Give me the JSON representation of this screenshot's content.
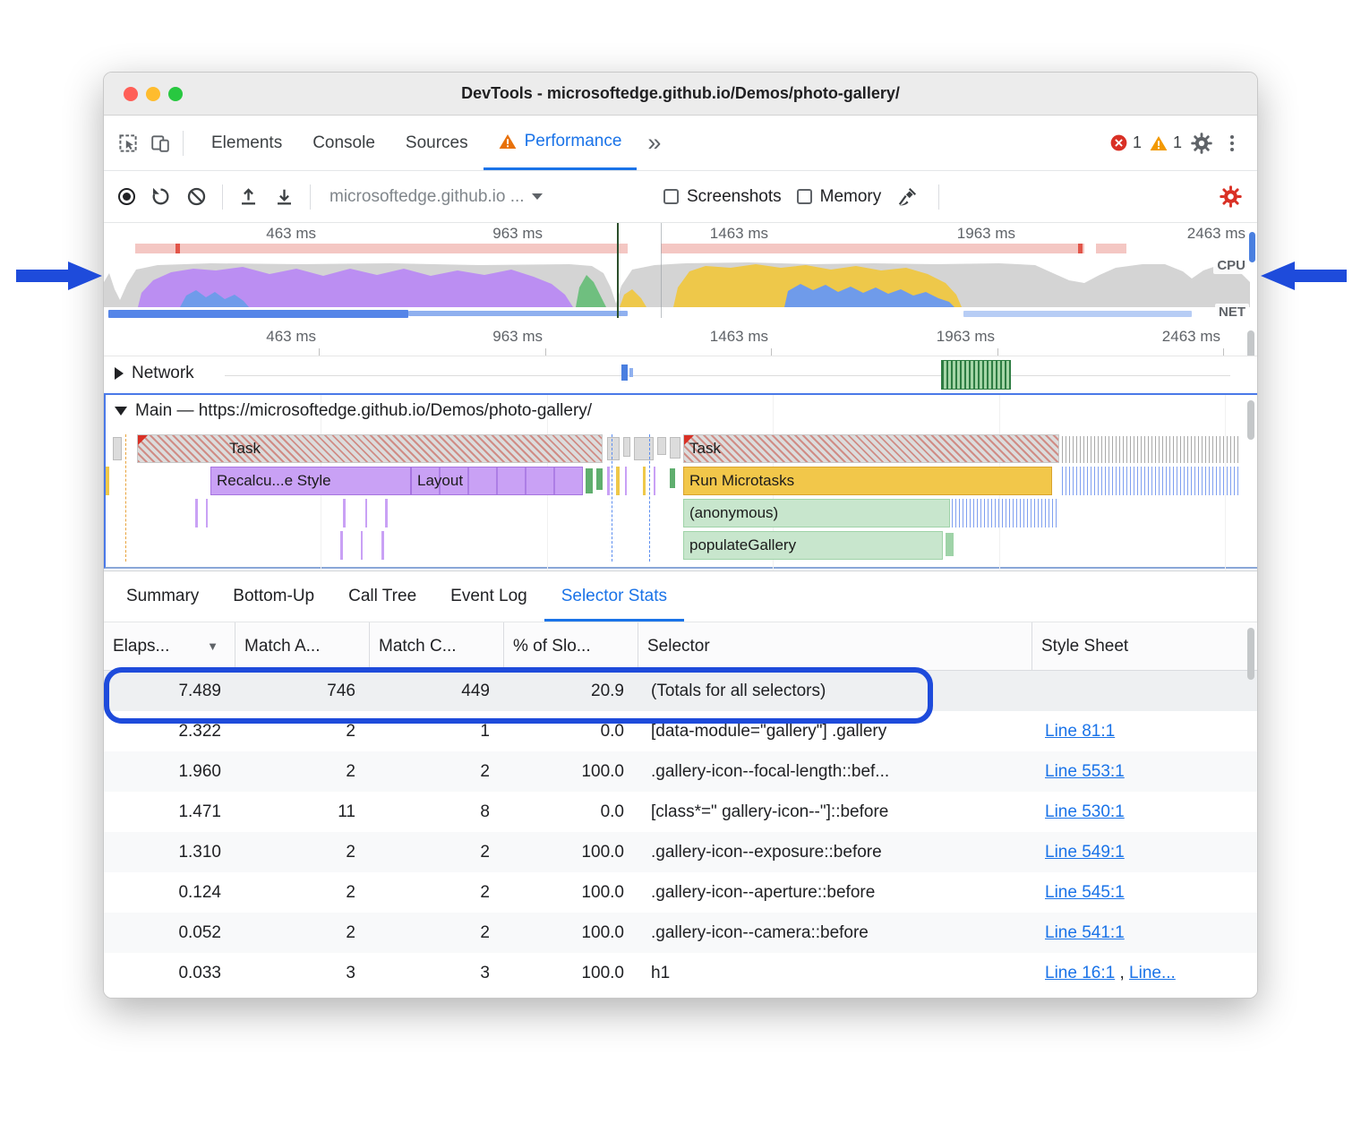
{
  "window_title": "DevTools - microsoftedge.github.io/Demos/photo-gallery/",
  "colors": {
    "accent_blue": "#1a73e8",
    "annotation_blue": "#1e4bdb",
    "error_red": "#d93025",
    "warning_orange": "#f29900",
    "performance_tab_warning": "#e8710a",
    "cpu_scripting_yellow": "#eec84a",
    "cpu_rendering_purple": "#bb8ef2",
    "cpu_painting_green": "#6fbf7f",
    "cpu_loading_blue": "#6f9bea",
    "cpu_other_gray": "#d4d4d4"
  },
  "icons": {
    "inspect-icon": "cursor-in-box",
    "device-toolbar-icon": "phone-tablet",
    "performance-warning-icon": "orange-triangle-exclaim",
    "more-tabs-icon": "double-chevron",
    "errors-icon": "red-circle-x",
    "warnings-icon": "orange-triangle-exclaim",
    "settings-icon": "gray-gear",
    "more-menu-icon": "kebab-dots",
    "record-icon": "filled-circle",
    "reload-icon": "circular-arrow",
    "clear-icon": "circle-slash",
    "upload-icon": "arrow-up-from-tray",
    "download-icon": "arrow-down-to-tray",
    "gc-icon": "broom",
    "capture-settings-icon": "red-gear",
    "sort-icon": "triangle-down",
    "network-toggle-icon": "triangle-right",
    "main-toggle-icon": "triangle-down"
  },
  "devtools_tabs": {
    "tabs": [
      {
        "label": "Elements"
      },
      {
        "label": "Console"
      },
      {
        "label": "Sources"
      },
      {
        "label": "Performance"
      }
    ],
    "selected": "Performance",
    "overflow_chevron": "»",
    "error_count": "1",
    "warning_count": "1"
  },
  "toolbar": {
    "history_select_label": "microsoftedge.github.io ...",
    "screenshots_label": "Screenshots",
    "memory_label": "Memory"
  },
  "overview": {
    "time_labels": [
      "463 ms",
      "963 ms",
      "1463 ms",
      "1963 ms",
      "2463 ms"
    ],
    "cpu_label": "CPU",
    "net_label": "NET"
  },
  "ruler_labels": [
    "463 ms",
    "963 ms",
    "1463 ms",
    "1963 ms",
    "2463 ms"
  ],
  "tracks": {
    "network_label": "Network",
    "main_label": "Main — https://microsoftedge.github.io/Demos/photo-gallery/",
    "flame": {
      "task1": "Task",
      "task2": "Task",
      "recalc_style": "Recalcu...e Style",
      "layout": "Layout",
      "run_microtasks": "Run Microtasks",
      "anonymous": "(anonymous)",
      "populate_gallery": "populateGallery"
    }
  },
  "bottom_tabs": [
    "Summary",
    "Bottom-Up",
    "Call Tree",
    "Event Log",
    "Selector Stats"
  ],
  "bottom_tabs_selected": "Selector Stats",
  "table": {
    "columns": [
      "Elaps...",
      "Match A...",
      "Match C...",
      "% of Slo...",
      "Selector",
      "Style Sheet"
    ],
    "rows": [
      {
        "elapsed": "7.489",
        "match_attempts": "746",
        "match_count": "449",
        "pct_of_slowest": "20.9",
        "selector": "(Totals for all selectors)",
        "links": [],
        "highlight": true
      },
      {
        "elapsed": "2.322",
        "match_attempts": "2",
        "match_count": "1",
        "pct_of_slowest": "0.0",
        "selector": "[data-module=\"gallery\"] .gallery",
        "links": [
          "Line 81:1"
        ]
      },
      {
        "elapsed": "1.960",
        "match_attempts": "2",
        "match_count": "2",
        "pct_of_slowest": "100.0",
        "selector": ".gallery-icon--focal-length::bef...",
        "links": [
          "Line 553:1"
        ]
      },
      {
        "elapsed": "1.471",
        "match_attempts": "11",
        "match_count": "8",
        "pct_of_slowest": "0.0",
        "selector": "[class*=\" gallery-icon--\"]::before",
        "links": [
          "Line 530:1"
        ]
      },
      {
        "elapsed": "1.310",
        "match_attempts": "2",
        "match_count": "2",
        "pct_of_slowest": "100.0",
        "selector": ".gallery-icon--exposure::before",
        "links": [
          "Line 549:1"
        ]
      },
      {
        "elapsed": "0.124",
        "match_attempts": "2",
        "match_count": "2",
        "pct_of_slowest": "100.0",
        "selector": ".gallery-icon--aperture::before",
        "links": [
          "Line 545:1"
        ]
      },
      {
        "elapsed": "0.052",
        "match_attempts": "2",
        "match_count": "2",
        "pct_of_slowest": "100.0",
        "selector": ".gallery-icon--camera::before",
        "links": [
          "Line 541:1"
        ]
      },
      {
        "elapsed": "0.033",
        "match_attempts": "3",
        "match_count": "3",
        "pct_of_slowest": "100.0",
        "selector": "h1",
        "links": [
          "Line 16:1",
          "Line..."
        ]
      }
    ]
  }
}
